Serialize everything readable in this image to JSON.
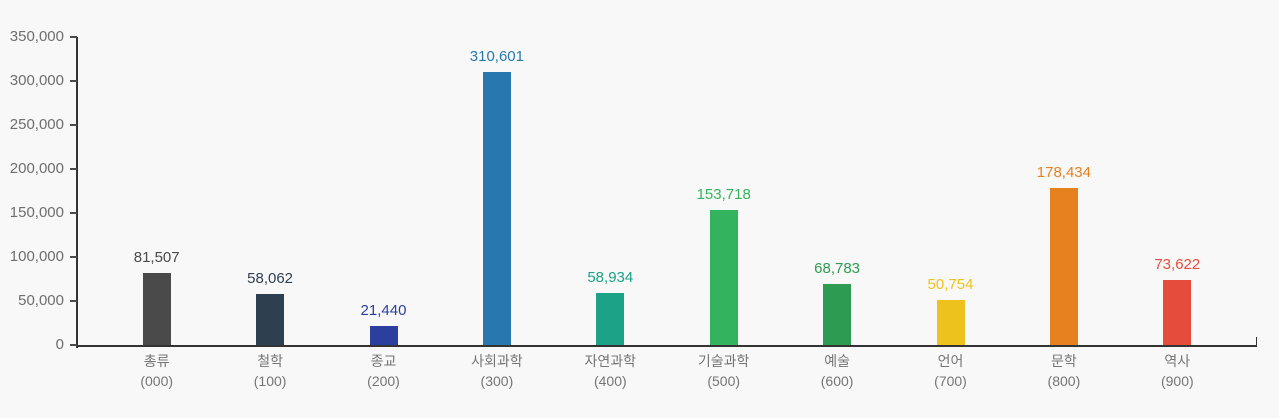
{
  "page": {
    "background": "#f8f8f8"
  },
  "axis": {
    "line_color": "#333333",
    "ytick_label_color": "#6e6e6e",
    "category_label_color": "#757575"
  },
  "chart_data": {
    "type": "bar",
    "title": "",
    "xlabel": "",
    "ylabel": "",
    "grid": false,
    "legend": "none",
    "ylim": [
      0,
      350000
    ],
    "ytick_step": 50000,
    "ytick_labels": [
      "0",
      "50,000",
      "100,000",
      "150,000",
      "200,000",
      "250,000",
      "300,000",
      "350,000"
    ],
    "categories": [
      "총류",
      "철학",
      "종교",
      "사회과학",
      "자연과학",
      "기술과학",
      "예술",
      "언어",
      "문학",
      "역사"
    ],
    "category_codes": [
      "(000)",
      "(100)",
      "(200)",
      "(300)",
      "(400)",
      "(500)",
      "(600)",
      "(700)",
      "(800)",
      "(900)"
    ],
    "values": [
      81507,
      58062,
      21440,
      310601,
      58934,
      153718,
      68783,
      50754,
      178434,
      73622
    ],
    "value_labels": [
      "81,507",
      "58,062",
      "21,440",
      "310,601",
      "58,934",
      "153,718",
      "68,783",
      "50,754",
      "178,434",
      "73,622"
    ],
    "bar_colors": [
      "#4a4a4a",
      "#2e3f52",
      "#2b3f9e",
      "#2878ae",
      "#1ba287",
      "#34b35e",
      "#2d9b52",
      "#eec21d",
      "#e5821f",
      "#e64c3c"
    ]
  }
}
